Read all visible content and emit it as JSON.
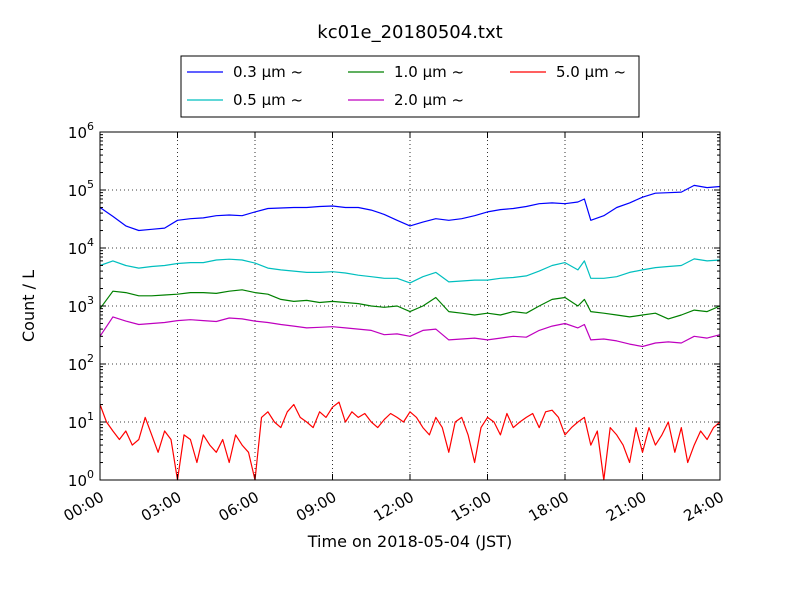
{
  "chart_data": {
    "type": "line",
    "title": "kc01e_20180504.txt",
    "xlabel": "Time on 2018-05-04 (JST)",
    "ylabel": "Count / L",
    "y_scale": "log",
    "xlim": [
      "00:00",
      "24:00"
    ],
    "ylim": [
      1,
      1000000
    ],
    "grid": true,
    "legend_position": "top-center",
    "x_ticks": [
      "00:00",
      "03:00",
      "06:00",
      "09:00",
      "12:00",
      "15:00",
      "18:00",
      "21:00",
      "24:00"
    ],
    "y_ticks": [
      {
        "base": "10",
        "exp": "0",
        "value": 1
      },
      {
        "base": "10",
        "exp": "1",
        "value": 10
      },
      {
        "base": "10",
        "exp": "2",
        "value": 100
      },
      {
        "base": "10",
        "exp": "3",
        "value": 1000
      },
      {
        "base": "10",
        "exp": "4",
        "value": 10000
      },
      {
        "base": "10",
        "exp": "5",
        "value": 100000
      },
      {
        "base": "10",
        "exp": "6",
        "value": 1000000
      }
    ],
    "series": [
      {
        "name": "0.3 μm ~",
        "color": "#0000ff",
        "x": [
          "00:00",
          "00:30",
          "01:00",
          "01:30",
          "02:00",
          "02:30",
          "03:00",
          "03:30",
          "04:00",
          "04:30",
          "05:00",
          "05:30",
          "06:00",
          "06:30",
          "07:00",
          "07:30",
          "08:00",
          "08:30",
          "09:00",
          "09:30",
          "10:00",
          "10:30",
          "11:00",
          "11:30",
          "12:00",
          "12:30",
          "13:00",
          "13:30",
          "14:00",
          "14:30",
          "15:00",
          "15:30",
          "16:00",
          "16:30",
          "17:00",
          "17:30",
          "18:00",
          "18:30",
          "18:45",
          "19:00",
          "19:30",
          "20:00",
          "20:30",
          "21:00",
          "21:30",
          "22:00",
          "22:30",
          "23:00",
          "23:30",
          "24:00"
        ],
        "y": [
          50000,
          35000,
          24000,
          20000,
          21000,
          22000,
          30000,
          32000,
          33000,
          36000,
          37000,
          36000,
          42000,
          48000,
          49000,
          50000,
          50000,
          52000,
          53000,
          50000,
          50000,
          45000,
          38000,
          30000,
          24000,
          28000,
          32000,
          30000,
          32000,
          36000,
          42000,
          46000,
          48000,
          52000,
          58000,
          60000,
          58000,
          62000,
          70000,
          30000,
          36000,
          50000,
          60000,
          75000,
          88000,
          90000,
          92000,
          120000,
          110000,
          115000
        ]
      },
      {
        "name": "0.5 μm ~",
        "color": "#00bfbf",
        "x": [
          "00:00",
          "00:30",
          "01:00",
          "01:30",
          "02:00",
          "02:30",
          "03:00",
          "03:30",
          "04:00",
          "04:30",
          "05:00",
          "05:30",
          "06:00",
          "06:30",
          "07:00",
          "07:30",
          "08:00",
          "08:30",
          "09:00",
          "09:30",
          "10:00",
          "10:30",
          "11:00",
          "11:30",
          "12:00",
          "12:30",
          "13:00",
          "13:30",
          "14:00",
          "14:30",
          "15:00",
          "15:30",
          "16:00",
          "16:30",
          "17:00",
          "17:30",
          "18:00",
          "18:30",
          "18:45",
          "19:00",
          "19:30",
          "20:00",
          "20:30",
          "21:00",
          "21:30",
          "22:00",
          "22:30",
          "23:00",
          "23:30",
          "24:00"
        ],
        "y": [
          5000,
          6000,
          5000,
          4500,
          4800,
          5000,
          5400,
          5600,
          5600,
          6200,
          6400,
          6200,
          5500,
          4500,
          4200,
          4000,
          3800,
          3800,
          3900,
          3700,
          3400,
          3200,
          3000,
          3000,
          2500,
          3200,
          3800,
          2600,
          2700,
          2800,
          2800,
          3000,
          3100,
          3300,
          4000,
          5000,
          5600,
          4200,
          6000,
          3000,
          3000,
          3200,
          3800,
          4200,
          4600,
          4800,
          5000,
          6500,
          6000,
          6200
        ]
      },
      {
        "name": "1.0 μm ~",
        "color": "#008000",
        "x": [
          "00:00",
          "00:30",
          "01:00",
          "01:30",
          "02:00",
          "02:30",
          "03:00",
          "03:30",
          "04:00",
          "04:30",
          "05:00",
          "05:30",
          "06:00",
          "06:30",
          "07:00",
          "07:30",
          "08:00",
          "08:30",
          "09:00",
          "09:30",
          "10:00",
          "10:30",
          "11:00",
          "11:30",
          "12:00",
          "12:30",
          "13:00",
          "13:30",
          "14:00",
          "14:30",
          "15:00",
          "15:30",
          "16:00",
          "16:30",
          "17:00",
          "17:30",
          "18:00",
          "18:30",
          "18:45",
          "19:00",
          "19:30",
          "20:00",
          "20:30",
          "21:00",
          "21:30",
          "22:00",
          "22:30",
          "23:00",
          "23:30",
          "24:00"
        ],
        "y": [
          900,
          1800,
          1700,
          1500,
          1500,
          1550,
          1600,
          1700,
          1700,
          1650,
          1800,
          1900,
          1700,
          1600,
          1300,
          1200,
          1250,
          1150,
          1200,
          1150,
          1100,
          1000,
          950,
          1000,
          800,
          1000,
          1400,
          800,
          750,
          700,
          750,
          700,
          800,
          750,
          1000,
          1300,
          1400,
          1000,
          1300,
          800,
          750,
          700,
          650,
          700,
          750,
          600,
          700,
          850,
          800,
          1000
        ]
      },
      {
        "name": "2.0 μm ~",
        "color": "#bf00bf",
        "x": [
          "00:00",
          "00:30",
          "01:00",
          "01:30",
          "02:00",
          "02:30",
          "03:00",
          "03:30",
          "04:00",
          "04:30",
          "05:00",
          "05:30",
          "06:00",
          "06:30",
          "07:00",
          "07:30",
          "08:00",
          "08:30",
          "09:00",
          "09:30",
          "10:00",
          "10:30",
          "11:00",
          "11:30",
          "12:00",
          "12:30",
          "13:00",
          "13:30",
          "14:00",
          "14:30",
          "15:00",
          "15:30",
          "16:00",
          "16:30",
          "17:00",
          "17:30",
          "18:00",
          "18:30",
          "18:45",
          "19:00",
          "19:30",
          "20:00",
          "20:30",
          "21:00",
          "21:30",
          "22:00",
          "22:30",
          "23:00",
          "23:30",
          "24:00"
        ],
        "y": [
          300,
          650,
          550,
          480,
          500,
          520,
          560,
          580,
          560,
          540,
          620,
          600,
          550,
          520,
          480,
          450,
          420,
          430,
          440,
          420,
          400,
          380,
          320,
          330,
          300,
          380,
          400,
          260,
          270,
          280,
          260,
          280,
          300,
          290,
          380,
          450,
          500,
          420,
          480,
          260,
          270,
          250,
          220,
          200,
          230,
          240,
          230,
          300,
          280,
          320
        ]
      },
      {
        "name": "5.0 μm ~",
        "color": "#ff0000",
        "x": [
          "00:00",
          "00:15",
          "00:30",
          "00:45",
          "01:00",
          "01:15",
          "01:30",
          "01:45",
          "02:00",
          "02:15",
          "02:30",
          "02:45",
          "03:00",
          "03:15",
          "03:30",
          "03:45",
          "04:00",
          "04:15",
          "04:30",
          "04:45",
          "05:00",
          "05:15",
          "05:30",
          "05:45",
          "06:00",
          "06:15",
          "06:30",
          "06:45",
          "07:00",
          "07:15",
          "07:30",
          "07:45",
          "08:00",
          "08:15",
          "08:30",
          "08:45",
          "09:00",
          "09:15",
          "09:30",
          "09:45",
          "10:00",
          "10:15",
          "10:30",
          "10:45",
          "11:00",
          "11:15",
          "11:30",
          "11:45",
          "12:00",
          "12:15",
          "12:30",
          "12:45",
          "13:00",
          "13:15",
          "13:30",
          "13:45",
          "14:00",
          "14:15",
          "14:30",
          "14:45",
          "15:00",
          "15:15",
          "15:30",
          "15:45",
          "16:00",
          "16:15",
          "16:30",
          "16:45",
          "17:00",
          "17:15",
          "17:30",
          "17:45",
          "18:00",
          "18:15",
          "18:30",
          "18:45",
          "19:00",
          "19:15",
          "19:30",
          "19:45",
          "20:00",
          "20:15",
          "20:30",
          "20:45",
          "21:00",
          "21:15",
          "21:30",
          "21:45",
          "22:00",
          "22:15",
          "22:30",
          "22:45",
          "23:00",
          "23:15",
          "23:30",
          "23:45",
          "24:00"
        ],
        "y": [
          20,
          10,
          7,
          5,
          7,
          4,
          5,
          12,
          6,
          3,
          7,
          5,
          1,
          6,
          5,
          2,
          6,
          4,
          3,
          5,
          2,
          6,
          4,
          3,
          1,
          12,
          15,
          10,
          8,
          15,
          20,
          12,
          10,
          8,
          15,
          12,
          18,
          22,
          10,
          15,
          12,
          14,
          10,
          8,
          11,
          14,
          12,
          10,
          15,
          12,
          8,
          6,
          12,
          8,
          3,
          10,
          12,
          6,
          2,
          8,
          12,
          10,
          6,
          14,
          8,
          10,
          12,
          14,
          8,
          15,
          16,
          12,
          6,
          8,
          10,
          12,
          4,
          7,
          1,
          8,
          6,
          4,
          2,
          8,
          3,
          8,
          4,
          6,
          10,
          3,
          8,
          2,
          4,
          7,
          5,
          8,
          10
        ]
      }
    ]
  }
}
